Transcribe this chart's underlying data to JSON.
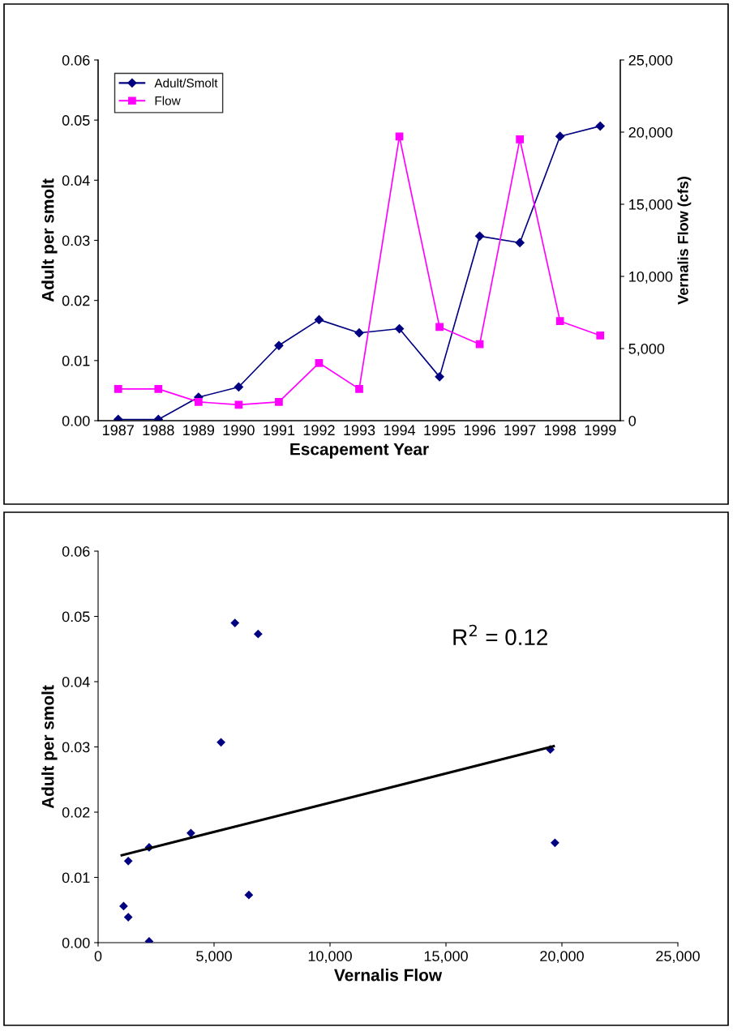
{
  "chart_data": [
    {
      "type": "line",
      "categories": [
        "1987",
        "1988",
        "1989",
        "1990",
        "1991",
        "1992",
        "1993",
        "1994",
        "1995",
        "1996",
        "1997",
        "1998",
        "1999"
      ],
      "xlabel": "Escapement Year",
      "ylabel": "Adult per smolt",
      "y2label": "Vernalis Flow (cfs)",
      "series": [
        {
          "name": "Adult/Smolt",
          "color": "#000080",
          "marker": "diamond",
          "values": [
            0.0002,
            0.0002,
            0.0039,
            0.0056,
            0.0125,
            0.0168,
            0.0146,
            0.0153,
            0.0073,
            0.0307,
            0.0296,
            0.0473,
            0.049
          ]
        },
        {
          "name": "Flow",
          "color": "#ff00ff",
          "marker": "square",
          "axis": "y2",
          "values": [
            2200,
            2200,
            1300,
            1100,
            1300,
            4000,
            2200,
            19700,
            6500,
            5300,
            19500,
            6900,
            5900
          ]
        }
      ],
      "ylim": [
        0,
        0.06
      ],
      "yticks": [
        {
          "value": 0,
          "label": "0.00"
        },
        {
          "value": 0.01,
          "label": "0.01"
        },
        {
          "value": 0.02,
          "label": "0.02"
        },
        {
          "value": 0.03,
          "label": "0.03"
        },
        {
          "value": 0.04,
          "label": "0.04"
        },
        {
          "value": 0.05,
          "label": "0.05"
        },
        {
          "value": 0.06,
          "label": "0.06"
        }
      ],
      "y2lim": [
        0,
        25000
      ],
      "y2ticks": [
        0,
        {
          "value": 5000,
          "label": "5,000"
        },
        {
          "value": 10000,
          "label": "10,000"
        },
        {
          "value": 15000,
          "label": "15,000"
        },
        {
          "value": 20000,
          "label": "20,000"
        },
        {
          "value": 25000,
          "label": "25,000"
        }
      ],
      "legend": "top left",
      "grid": false
    },
    {
      "type": "scatter",
      "xlabel": "Vernalis Flow",
      "ylabel": "Adult per smolt",
      "series": [
        {
          "type": "scatter",
          "color": "#000080",
          "marker": "diamond",
          "x": [
            2200,
            null,
            1300,
            1100,
            1300,
            4000,
            2200,
            19700,
            6500,
            5300,
            19500,
            6900,
            5900
          ],
          "values": [
            0.0002,
            null,
            0.0039,
            0.0056,
            0.0125,
            0.0168,
            0.0146,
            0.0153,
            0.0073,
            0.0307,
            0.0296,
            0.0473,
            0.049
          ]
        },
        {
          "type": "line",
          "color": "#000000",
          "marker": "none",
          "x": [
            1020,
            19645
          ],
          "values": [
            0.0134,
            0.0301
          ]
        }
      ],
      "xlim": [
        0,
        25000
      ],
      "xticks": [
        0,
        {
          "value": 5000,
          "label": "5,000"
        },
        {
          "value": 10000,
          "label": "10,000"
        },
        {
          "value": 15000,
          "label": "15,000"
        },
        {
          "value": 20000,
          "label": "20,000"
        },
        {
          "value": 25000,
          "label": "25,000"
        }
      ],
      "ylim": [
        0,
        0.06
      ],
      "yticks": [
        {
          "value": 0,
          "label": "0.00"
        },
        {
          "value": 0.01,
          "label": "0.01"
        },
        {
          "value": 0.02,
          "label": "0.02"
        },
        {
          "value": 0.03,
          "label": "0.03"
        },
        {
          "value": 0.04,
          "label": "0.04"
        },
        {
          "value": 0.05,
          "label": "0.05"
        },
        {
          "value": 0.06,
          "label": "0.06"
        }
      ],
      "annotations": [
        "R$^{2}$ = 0.12"
      ],
      "grid": false
    }
  ]
}
